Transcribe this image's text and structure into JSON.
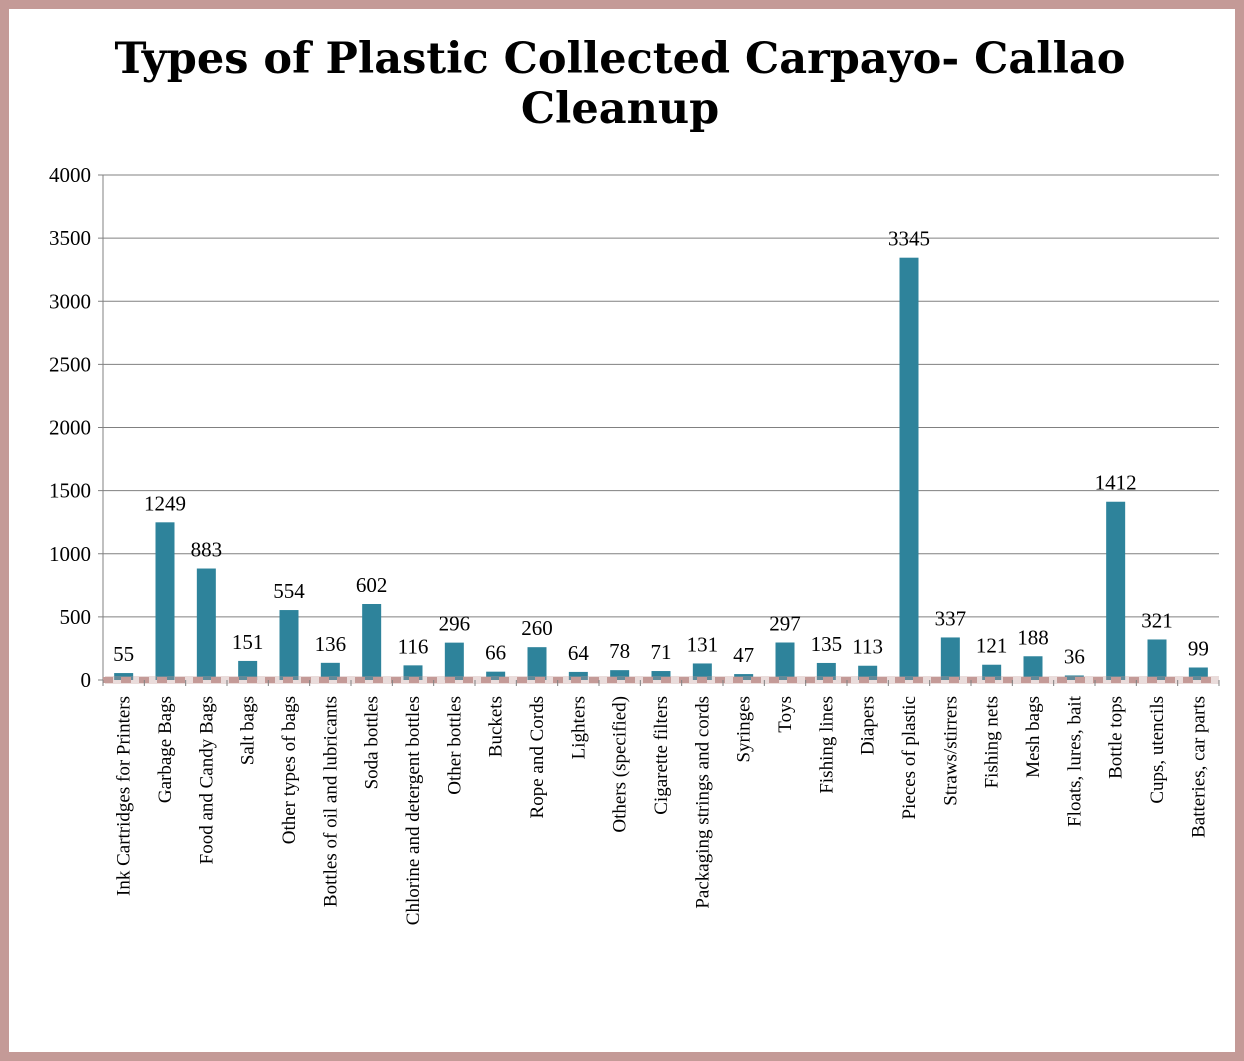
{
  "chart_data": {
    "type": "bar",
    "title": "Types of Plastic Collected Carpayo- Callao Cleanup",
    "xlabel": "",
    "ylabel": "",
    "ylim": [
      0,
      4000
    ],
    "yticks": [
      0,
      500,
      1000,
      1500,
      2000,
      2500,
      3000,
      3500,
      4000
    ],
    "grid": true,
    "bar_color": "#2e839b",
    "border_color": "#c49a97",
    "categories": [
      "Ink Cartridges for Printers",
      "Garbage Bags",
      "Food and Candy Bags",
      "Salt bags",
      "Other types of bags",
      "Bottles of oil and lubricants",
      "Soda bottles",
      "Chlorine and detergent bottles",
      "Other bottles",
      "Buckets",
      "Rope and Cords",
      "Lighters",
      "Others (specified)",
      "Cigarette filters",
      "Packaging strings and cords",
      "Syringes",
      "Toys",
      "Fishing lines",
      "Diapers",
      "Pieces of plastic",
      "Straws/stirrers",
      "Fishing nets",
      "Mesh bags",
      "Floats, lures, bait",
      "Bottle tops",
      "Cups, utencils",
      "Batteries, car parts"
    ],
    "values": [
      55,
      1249,
      883,
      151,
      554,
      136,
      602,
      116,
      296,
      66,
      260,
      64,
      78,
      71,
      131,
      47,
      297,
      135,
      113,
      3345,
      337,
      121,
      188,
      36,
      1412,
      321,
      99
    ]
  }
}
